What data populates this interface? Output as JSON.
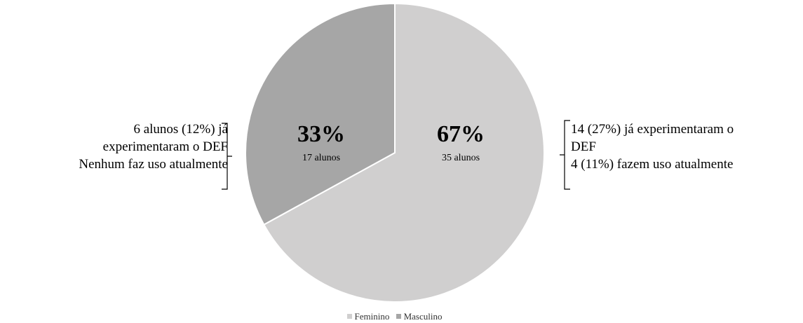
{
  "chart_data": {
    "type": "pie",
    "categories": [
      "Feminino",
      "Masculino"
    ],
    "values": [
      67,
      33
    ],
    "series": [
      {
        "name": "Feminino",
        "value": 67,
        "value_label": "67%",
        "count_label": "35 alunos",
        "color": "#d0cfcf"
      },
      {
        "name": "Masculino",
        "value": 33,
        "value_label": "33%",
        "count_label": "17 alunos",
        "color": "#a6a6a6"
      }
    ],
    "legend_position": "bottom",
    "slice_border_color": "#ffffff"
  },
  "annotations": {
    "left": [
      "6 alunos (12%) já",
      "experimentaram o DEF",
      "Nenhum faz uso atualmente"
    ],
    "right": [
      "14 (27%) já experimentaram o",
      "DEF",
      "4 (11%) fazem uso atualmente"
    ]
  },
  "legend": {
    "items": [
      {
        "label": "Feminino",
        "color": "#d0cfcf"
      },
      {
        "label": "Masculino",
        "color": "#a6a6a6"
      }
    ]
  }
}
